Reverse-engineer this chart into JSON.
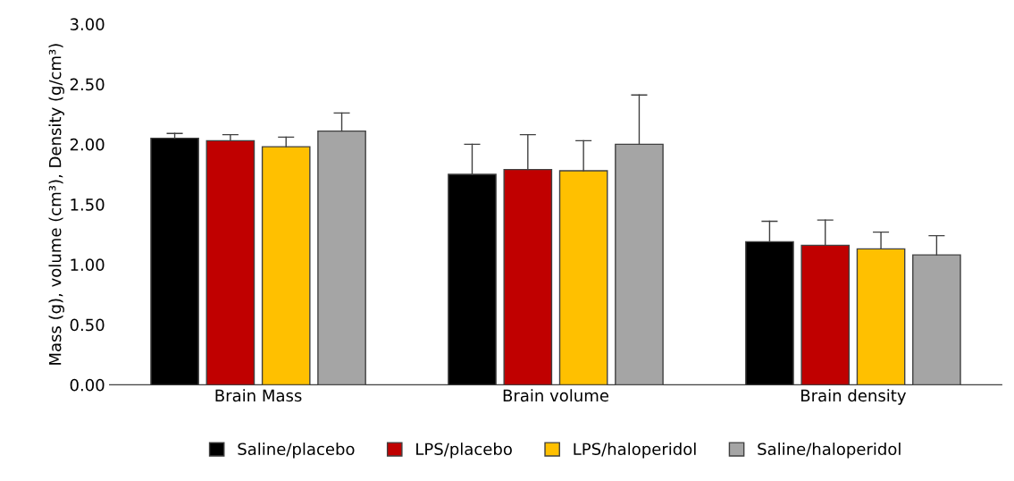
{
  "chart_data": {
    "type": "bar",
    "ylabel": "Mass (g), volume (cm³), Density (g/cm³)",
    "categories": [
      "Brain Mass",
      "Brain volume",
      "Brain density"
    ],
    "series": [
      {
        "name": "Saline/placebo",
        "color": "#000000",
        "values": [
          2.05,
          1.75,
          1.19
        ],
        "errors": [
          [
            2.05,
            2.09
          ],
          [
            1.75,
            2.0
          ],
          [
            1.19,
            1.36
          ]
        ]
      },
      {
        "name": "LPS/placebo",
        "color": "#c00000",
        "values": [
          2.03,
          1.79,
          1.16
        ],
        "errors": [
          [
            2.03,
            2.08
          ],
          [
            1.79,
            2.08
          ],
          [
            1.16,
            1.37
          ]
        ]
      },
      {
        "name": "LPS/haloperidol",
        "color": "#ffc000",
        "values": [
          1.98,
          1.78,
          1.13
        ],
        "errors": [
          [
            1.98,
            2.06
          ],
          [
            1.78,
            2.03
          ],
          [
            1.13,
            1.27
          ]
        ]
      },
      {
        "name": "Saline/haloperidol",
        "color": "#a5a5a5",
        "values": [
          2.11,
          2.0,
          1.08
        ],
        "errors": [
          [
            2.11,
            2.26
          ],
          [
            2.0,
            2.41
          ],
          [
            1.08,
            1.24
          ]
        ]
      }
    ],
    "ylim": [
      0,
      3
    ],
    "yticks": [
      {
        "value": 0,
        "label": "0.00"
      },
      {
        "value": 0.5,
        "label": "0.50"
      },
      {
        "value": 1,
        "label": "1.00"
      },
      {
        "value": 1.5,
        "label": "1.50"
      },
      {
        "value": 2,
        "label": "2.00"
      },
      {
        "value": 2.5,
        "label": "2.50"
      },
      {
        "value": 3,
        "label": "3.00"
      }
    ],
    "legend": "bottom"
  }
}
